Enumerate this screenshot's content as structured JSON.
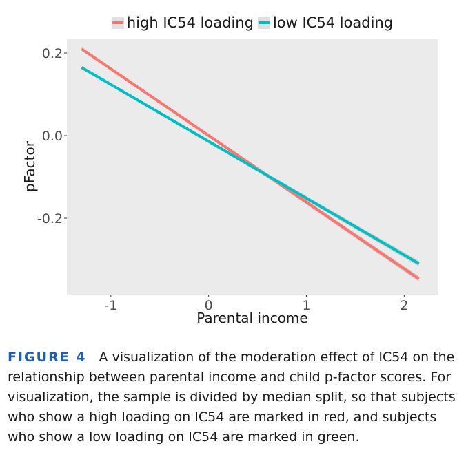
{
  "chart_data": {
    "type": "line",
    "title": "",
    "xlabel": "Parental income",
    "ylabel": "pFactor",
    "xlim": [
      -1.45,
      2.35
    ],
    "ylim": [
      -0.385,
      0.235
    ],
    "x_ticks": [
      -1,
      0,
      1,
      2
    ],
    "x_tick_labels": [
      "-1",
      "0",
      "1",
      "2"
    ],
    "y_ticks": [
      0.2,
      0.0,
      -0.2
    ],
    "y_tick_labels": [
      "0.2",
      "0.0",
      "-0.2"
    ],
    "grid": false,
    "legend_position": "top",
    "series": [
      {
        "name": "high IC54 loading",
        "color": "#F8766D",
        "x": [
          -1.3,
          2.15
        ],
        "y": [
          0.21,
          -0.347
        ]
      },
      {
        "name": "low IC54 loading",
        "color": "#00BFC4",
        "x": [
          -1.3,
          2.15
        ],
        "y": [
          0.165,
          -0.31
        ]
      }
    ],
    "panel_color": "#EBEBEB"
  },
  "caption": {
    "label": "FIGURE 4",
    "text": "A visualization of the moderation effect of IC54 on the relationship between parental income and child p-factor scores. For visualization, the sample is divided by median split, so that subjects who show a high loading on IC54 are marked in red, and subjects who show a low loading on IC54 are marked in green."
  }
}
